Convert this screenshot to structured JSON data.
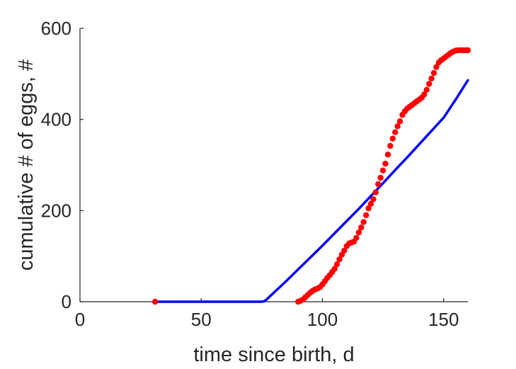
{
  "chart_data": {
    "type": "scatter",
    "title": "",
    "xlabel": "time since birth, d",
    "ylabel": "cumulative # of eggs, #",
    "xlim": [
      0,
      160
    ],
    "ylim": [
      0,
      600
    ],
    "xticks": [
      0,
      50,
      100,
      150
    ],
    "yticks": [
      0,
      200,
      400,
      600
    ],
    "xtick_labels": [
      "0",
      "50",
      "100",
      "150"
    ],
    "ytick_labels": [
      "0",
      "200",
      "400",
      "600"
    ],
    "grid": false,
    "legend": "none",
    "series": [
      {
        "kind": "scatter",
        "color": "#ff0000",
        "points": [
          [
            31,
            0
          ],
          [
            90,
            0
          ],
          [
            91,
            2
          ],
          [
            92,
            5
          ],
          [
            93,
            10
          ],
          [
            94,
            15
          ],
          [
            95,
            20
          ],
          [
            96,
            24
          ],
          [
            97,
            27
          ],
          [
            98,
            29
          ],
          [
            99,
            32
          ],
          [
            100,
            38
          ],
          [
            101,
            45
          ],
          [
            102,
            52
          ],
          [
            103,
            58
          ],
          [
            104,
            65
          ],
          [
            105,
            72
          ],
          [
            106,
            82
          ],
          [
            107,
            93
          ],
          [
            108,
            103
          ],
          [
            109,
            112
          ],
          [
            110,
            122
          ],
          [
            111,
            128
          ],
          [
            112,
            130
          ],
          [
            113,
            132
          ],
          [
            114,
            140
          ],
          [
            115,
            152
          ],
          [
            116,
            163
          ],
          [
            117,
            175
          ],
          [
            118,
            190
          ],
          [
            119,
            205
          ],
          [
            120,
            215
          ],
          [
            121,
            225
          ],
          [
            122,
            240
          ],
          [
            123,
            258
          ],
          [
            124,
            272
          ],
          [
            125,
            288
          ],
          [
            126,
            303
          ],
          [
            127,
            323
          ],
          [
            128,
            342
          ],
          [
            129,
            358
          ],
          [
            130,
            372
          ],
          [
            131,
            385
          ],
          [
            132,
            396
          ],
          [
            133,
            410
          ],
          [
            134,
            418
          ],
          [
            135,
            424
          ],
          [
            136,
            428
          ],
          [
            137,
            432
          ],
          [
            138,
            436
          ],
          [
            139,
            440
          ],
          [
            140,
            444
          ],
          [
            141,
            448
          ],
          [
            142,
            455
          ],
          [
            143,
            465
          ],
          [
            144,
            478
          ],
          [
            145,
            490
          ],
          [
            146,
            502
          ],
          [
            147,
            515
          ],
          [
            148,
            525
          ],
          [
            149,
            530
          ],
          [
            150,
            534
          ],
          [
            151,
            538
          ],
          [
            152,
            542
          ],
          [
            153,
            546
          ],
          [
            154,
            549
          ],
          [
            155,
            551
          ],
          [
            156,
            552
          ],
          [
            157,
            552
          ],
          [
            158,
            552
          ],
          [
            159,
            552
          ],
          [
            160,
            552
          ]
        ]
      },
      {
        "kind": "line",
        "color": "#0000ff",
        "points": [
          [
            31,
            0
          ],
          [
            75,
            0
          ],
          [
            76,
            1
          ],
          [
            77,
            5
          ],
          [
            80,
            20
          ],
          [
            85,
            45
          ],
          [
            90,
            71
          ],
          [
            95,
            97
          ],
          [
            100,
            123
          ],
          [
            105,
            150
          ],
          [
            110,
            177
          ],
          [
            115,
            204
          ],
          [
            120,
            232
          ],
          [
            125,
            260
          ],
          [
            130,
            289
          ],
          [
            135,
            317
          ],
          [
            140,
            346
          ],
          [
            145,
            375
          ],
          [
            150,
            404
          ],
          [
            155,
            444
          ],
          [
            160,
            486
          ]
        ]
      }
    ]
  }
}
